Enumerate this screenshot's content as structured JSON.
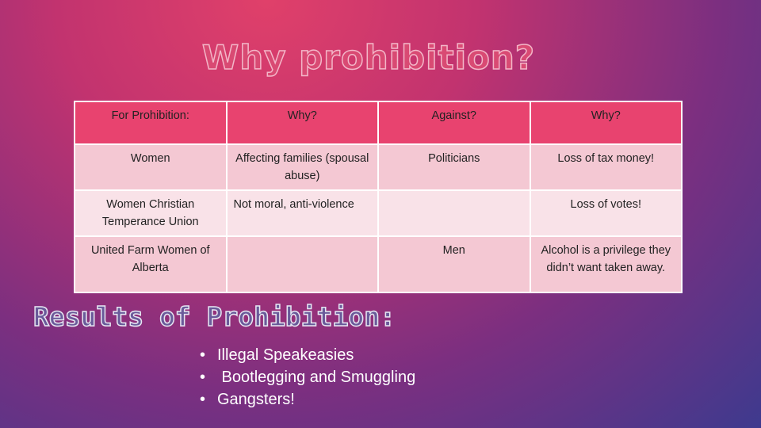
{
  "title": "Why prohibition?",
  "table": {
    "header": [
      "For Prohibition:",
      "Why?",
      "Against?",
      "Why?"
    ],
    "rows": [
      [
        "Women",
        "Affecting families (spousal abuse)",
        "Politicians",
        "Loss of tax money!"
      ],
      [
        "Women Christian Temperance Union",
        "Not moral, anti-violence",
        null,
        "Loss of votes!"
      ],
      [
        "United Farm Women of Alberta",
        null,
        "Men",
        "Alcohol is a privilege they didn’t want taken away."
      ]
    ]
  },
  "results": {
    "heading": "Results of Prohibition:",
    "bullets": [
      "Illegal Speakeasies",
      " Bootlegging and Smuggling",
      "Gangsters!"
    ]
  }
}
